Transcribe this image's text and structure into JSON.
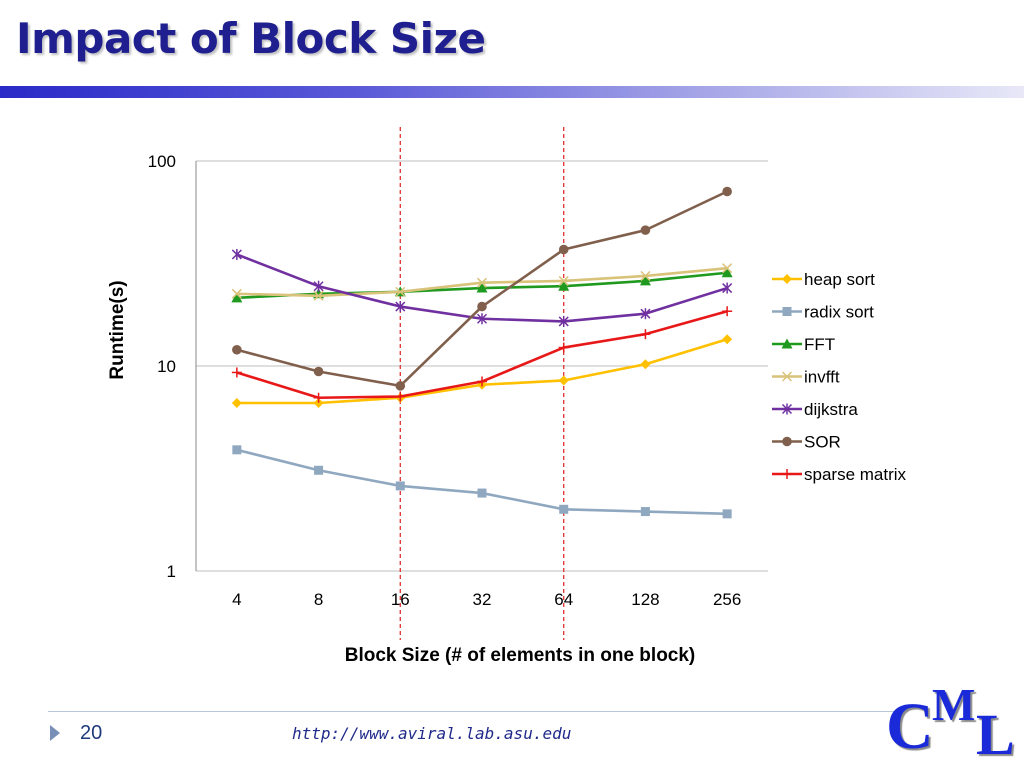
{
  "slide": {
    "title": "Impact of Block Size",
    "page_number": "20",
    "url": "http://www.aviral.lab.asu.edu",
    "logo": {
      "c": "C",
      "m": "M",
      "l": "L"
    }
  },
  "colors": {
    "title": "#1f1f8f",
    "reference_line": "#e03030",
    "grid": "#bfbfbf"
  },
  "chart_data": {
    "type": "line",
    "title": "",
    "xlabel": "Block Size (# of elements in one block)",
    "ylabel": "Runtime(s)",
    "yscale": "log",
    "ylim": [
      1,
      100
    ],
    "yticks": [
      1,
      10,
      100
    ],
    "grid": true,
    "legend_position": "right",
    "categories": [
      "4",
      "8",
      "16",
      "32",
      "64",
      "128",
      "256"
    ],
    "reference_lines_at": [
      "16",
      "64"
    ],
    "series": [
      {
        "name": "heap sort",
        "color": "#ffc000",
        "marker": "diamond",
        "values": [
          6.6,
          6.6,
          7.0,
          8.1,
          8.5,
          10.2,
          13.5
        ]
      },
      {
        "name": "radix sort",
        "color": "#8fa8c0",
        "marker": "square",
        "values": [
          3.9,
          3.1,
          2.6,
          2.4,
          2.0,
          1.95,
          1.9
        ]
      },
      {
        "name": "FFT",
        "color": "#1f9a1f",
        "marker": "triangle",
        "values": [
          21.5,
          22.5,
          23.0,
          24.0,
          24.5,
          26.0,
          28.5
        ]
      },
      {
        "name": "invfft",
        "color": "#d9c27a",
        "marker": "x",
        "values": [
          22.5,
          22.0,
          23.0,
          25.5,
          26.0,
          27.5,
          30.0
        ]
      },
      {
        "name": "dijkstra",
        "color": "#7030a0",
        "marker": "star",
        "values": [
          35.0,
          24.5,
          19.5,
          17.0,
          16.5,
          18.0,
          24.0
        ]
      },
      {
        "name": "SOR",
        "color": "#80604d",
        "marker": "circle",
        "values": [
          12.0,
          9.4,
          8.0,
          19.5,
          37.0,
          46.0,
          71.0
        ]
      },
      {
        "name": "sparse matrix",
        "color": "#e81818",
        "marker": "plus",
        "values": [
          9.3,
          7.0,
          7.1,
          8.4,
          12.3,
          14.3,
          18.5
        ]
      }
    ]
  }
}
